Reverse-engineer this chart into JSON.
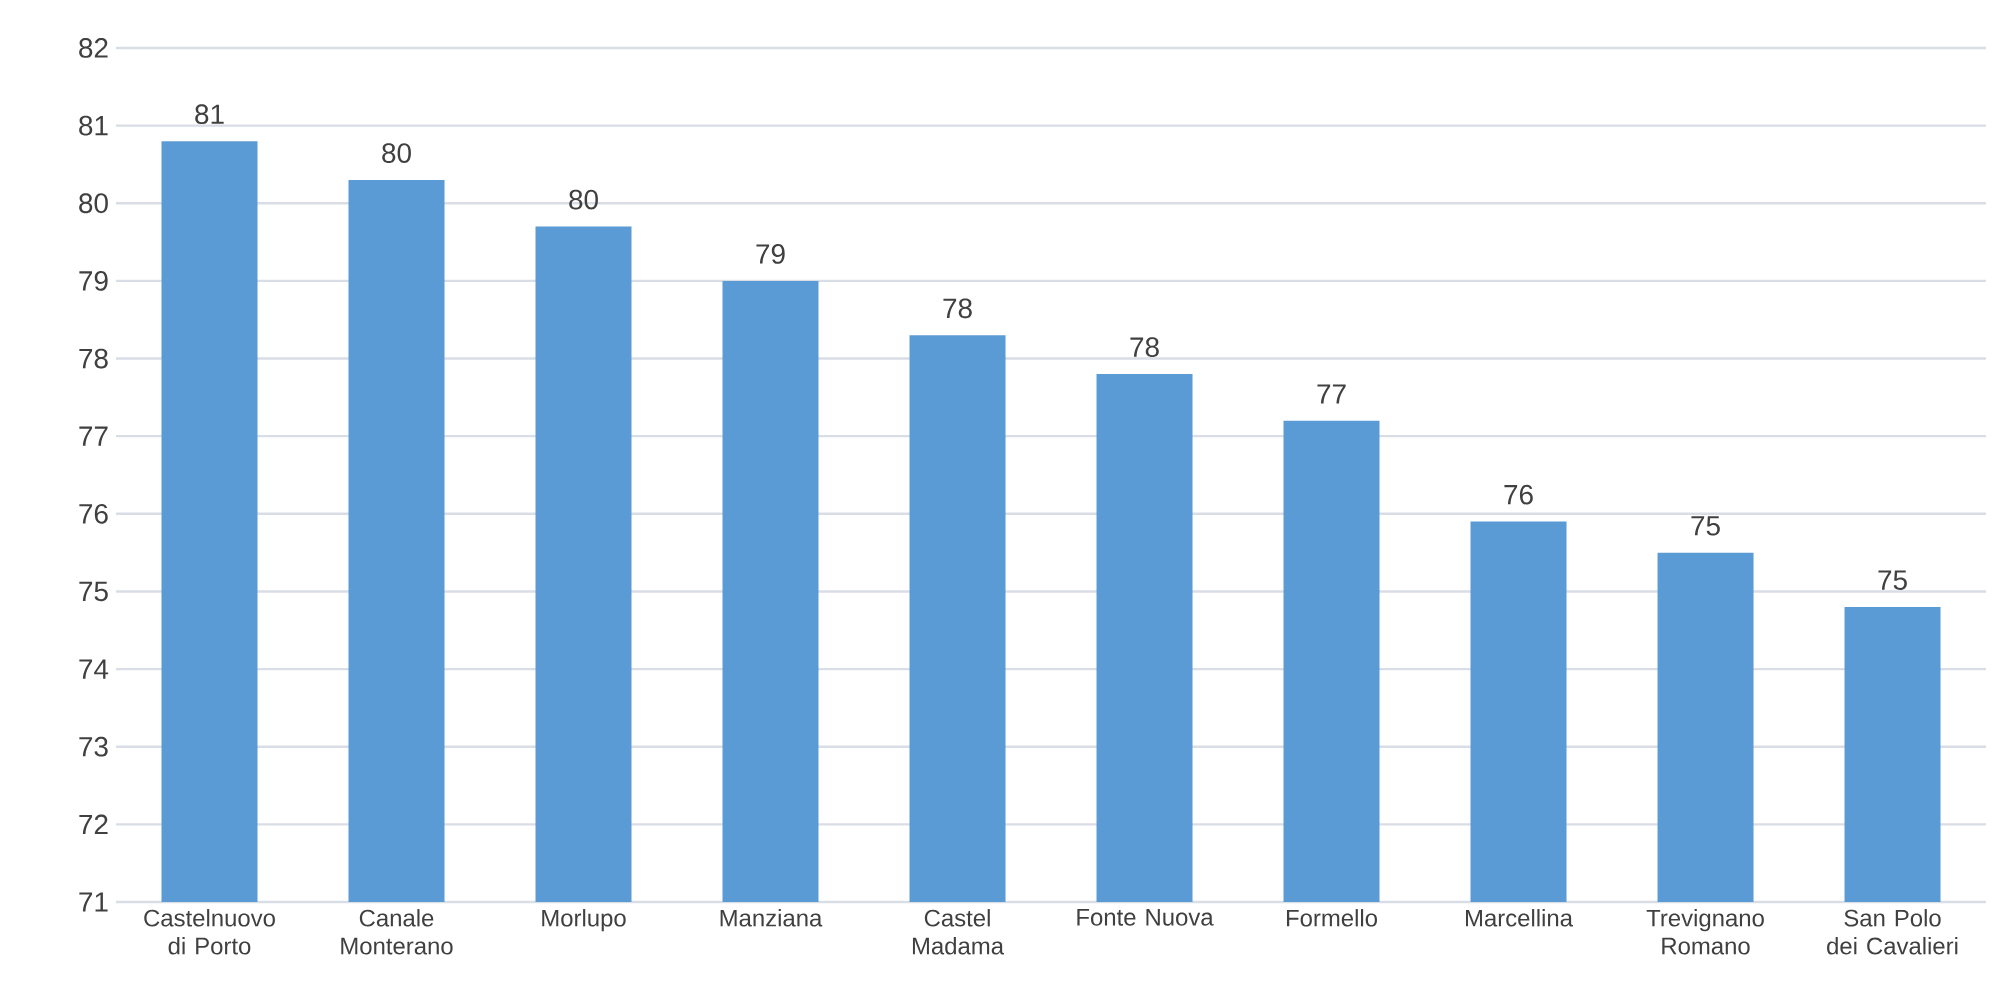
{
  "chart_data": {
    "type": "bar",
    "categories": [
      "Castelnuovo di Porto",
      "Canale Monterano",
      "Morlupo",
      "Manziana",
      "Castel Madama",
      "Fonte Nuova",
      "Formello",
      "Marcellina",
      "Trevignano Romano",
      "San Polo dei Cavalieri"
    ],
    "values": [
      80.8,
      80.3,
      79.7,
      79.0,
      78.3,
      77.8,
      77.2,
      75.9,
      75.5,
      74.8
    ],
    "value_labels": [
      "81",
      "80",
      "80",
      "79",
      "78",
      "78",
      "77",
      "76",
      "75",
      "75"
    ],
    "color": "#5b9bd5",
    "ylim": [
      71,
      82
    ],
    "yticks": [
      71,
      72,
      73,
      74,
      75,
      76,
      77,
      78,
      79,
      80,
      81,
      82
    ],
    "grid": "y"
  }
}
